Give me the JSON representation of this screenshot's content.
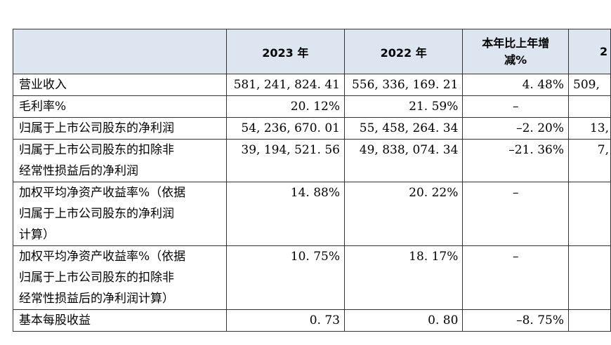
{
  "table": {
    "headers": [
      "",
      "2023 年",
      "2022 年",
      "本年比上年增减%",
      ""
    ],
    "header_change_line1": "本年比上年增",
    "header_change_line2": "减%",
    "header_extra": "2",
    "rows": [
      {
        "label": "营业收入",
        "v2023": "581, 241, 824. 41",
        "v2022": "556, 336, 169. 21",
        "change": "4. 48%",
        "extra": "509,"
      },
      {
        "label": "毛利率%",
        "v2023": "20. 12%",
        "v2022": "21. 59%",
        "change": "–",
        "extra": ""
      },
      {
        "label": "归属于上市公司股东的净利润",
        "v2023": "54, 236, 670. 01",
        "v2022": "55, 458, 264. 34",
        "change": "–2. 20%",
        "extra": "13,"
      },
      {
        "label_lines": [
          "归属于上市公司股东的扣除非",
          "经常性损益后的净利润"
        ],
        "v2023": "39, 194, 521. 56",
        "v2022": "49, 838, 074. 34",
        "change": "–21. 36%",
        "extra": "7,"
      },
      {
        "label_lines": [
          "加权平均净资产收益率%（依据",
          "归属于上市公司股东的净利润",
          "计算）"
        ],
        "v2023": "14. 88%",
        "v2022": "20. 22%",
        "change": "–",
        "extra": ""
      },
      {
        "label_lines": [
          "加权平均净资产收益率%（依据",
          "归属于上市公司股东的扣除非",
          "经常性损益后的净利润计算）"
        ],
        "v2023": "10. 75%",
        "v2022": "18. 17%",
        "change": "–",
        "extra": ""
      },
      {
        "label": "基本每股收益",
        "v2023": "0. 73",
        "v2022": "0. 80",
        "change": "–8. 75%",
        "extra": ""
      }
    ]
  }
}
